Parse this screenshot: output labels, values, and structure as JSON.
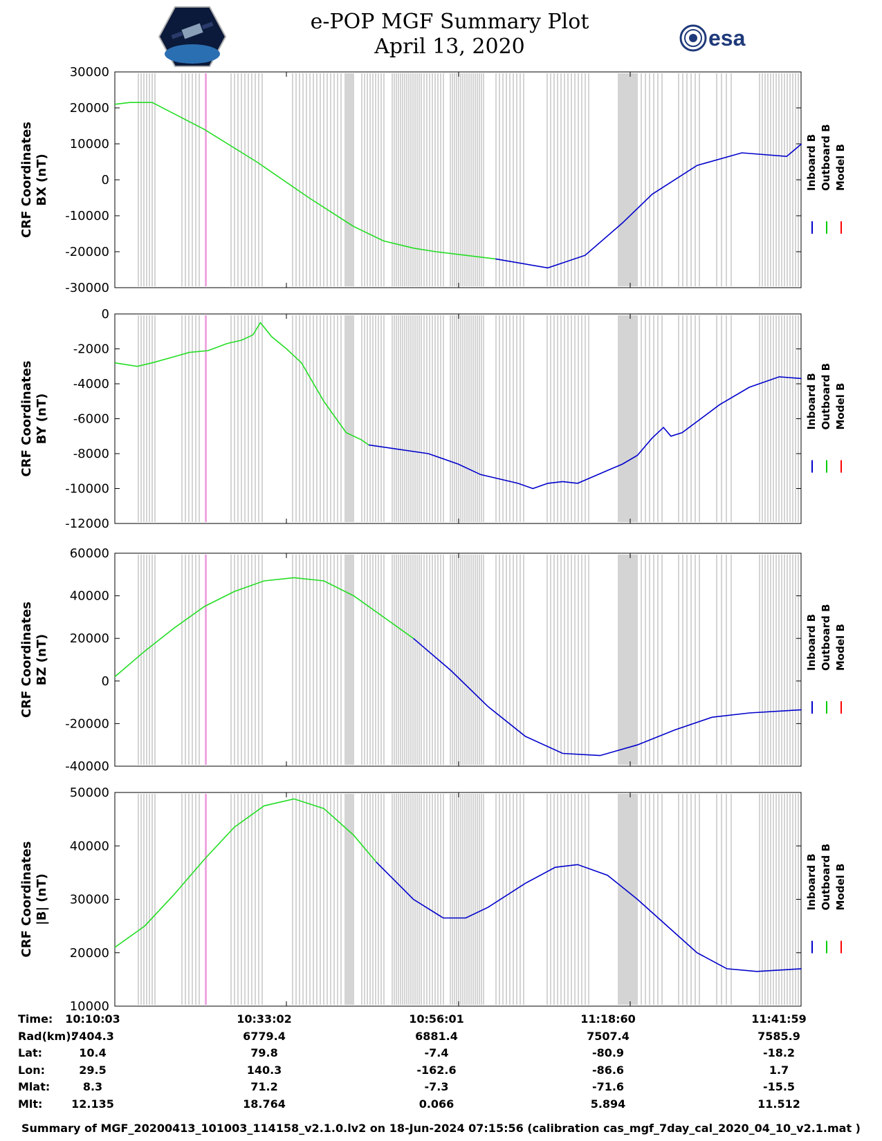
{
  "header": {
    "title_line1": "e-POP MGF Summary Plot",
    "title_line2": "April 13, 2020",
    "logo_left_name": "cassiope-mission-logo",
    "logo_right_text": "esa"
  },
  "legend": {
    "entries": [
      "Inboard B",
      "Outboard B",
      "Model B"
    ],
    "colors": [
      "#0000cc",
      "#00cc00",
      "#ff0000"
    ]
  },
  "colors": {
    "inboard": "#0000cc",
    "outboard": "#22dd22",
    "model": "#ff0000",
    "gap_bands": "#d4d4d4",
    "marker": "#f0a8e0"
  },
  "time_axis": {
    "ticks": [
      "10:10:03",
      "10:33:02",
      "10:56:01",
      "11:18:60",
      "11:41:59"
    ],
    "start_minutes": 0,
    "end_minutes": 91.93
  },
  "chart_data": [
    {
      "type": "line",
      "name": "bx",
      "ylabel_line1": "CRF Coordinates",
      "ylabel_line2": "BX (nT)",
      "ylim": [
        -30000,
        30000
      ],
      "yticks": [
        30000,
        20000,
        10000,
        0,
        -10000,
        -20000,
        -30000
      ],
      "ytick_labels": [
        "30000",
        "20000",
        "10000",
        "0",
        "-10000",
        "-20000",
        "-30000"
      ],
      "series": [
        {
          "name": "Outboard B",
          "t": [
            0,
            2,
            5,
            12,
            19,
            26,
            32,
            36,
            40,
            43,
            47,
            51
          ],
          "values": [
            21000,
            21500,
            21500,
            14000,
            5000,
            -5000,
            -13000,
            -17000,
            -19000,
            -20000,
            -21000,
            -22000
          ]
        },
        {
          "name": "Inboard B",
          "t": [
            51,
            58,
            63,
            68,
            72,
            78,
            84,
            90,
            92
          ],
          "values": [
            -22000,
            -24500,
            -21000,
            -12000,
            -4000,
            4000,
            7500,
            6500,
            10000
          ]
        }
      ]
    },
    {
      "type": "line",
      "name": "by",
      "ylabel_line1": "CRF Coordinates",
      "ylabel_line2": "BY (nT)",
      "ylim": [
        -12000,
        0
      ],
      "yticks": [
        0,
        -2000,
        -4000,
        -6000,
        -8000,
        -10000,
        -12000
      ],
      "ytick_labels": [
        "0",
        "-2000",
        "-4000",
        "-6000",
        "-8000",
        "-10000",
        "-12000"
      ],
      "series": [
        {
          "name": "Outboard B",
          "t": [
            0,
            3,
            5,
            10,
            12.5,
            15,
            17,
            18.5,
            19.5,
            21,
            23,
            25,
            28,
            31,
            33,
            34
          ],
          "values": [
            -2800,
            -3000,
            -2800,
            -2200,
            -2100,
            -1700,
            -1500,
            -1200,
            -500,
            -1300,
            -2000,
            -2800,
            -5000,
            -6800,
            -7200,
            -7500
          ]
        },
        {
          "name": "Inboard B",
          "t": [
            34,
            42,
            46,
            49,
            54,
            56,
            58,
            60,
            62,
            68,
            70,
            72,
            73.5,
            74.5,
            76,
            81,
            85,
            89,
            92
          ],
          "values": [
            -7500,
            -8000,
            -8600,
            -9200,
            -9700,
            -10000,
            -9700,
            -9600,
            -9700,
            -8600,
            -8100,
            -7100,
            -6500,
            -7000,
            -6800,
            -5200,
            -4200,
            -3600,
            -3700
          ]
        }
      ]
    },
    {
      "type": "line",
      "name": "bz",
      "ylabel_line1": "CRF Coordinates",
      "ylabel_line2": "BZ (nT)",
      "ylim": [
        -40000,
        60000
      ],
      "yticks": [
        60000,
        40000,
        20000,
        0,
        -20000,
        -40000
      ],
      "ytick_labels": [
        "60000",
        "40000",
        "20000",
        "0",
        "-20000",
        "-40000"
      ],
      "series": [
        {
          "name": "Outboard B",
          "t": [
            0,
            4,
            8,
            12,
            16,
            20,
            24,
            28,
            32,
            36,
            40
          ],
          "values": [
            2000,
            14000,
            25000,
            35000,
            42000,
            47000,
            48500,
            47000,
            40000,
            30000,
            20000
          ]
        },
        {
          "name": "Inboard B",
          "t": [
            40,
            45,
            50,
            55,
            60,
            65,
            70,
            75,
            80,
            85,
            92
          ],
          "values": [
            20000,
            5000,
            -12000,
            -26000,
            -34000,
            -35000,
            -30000,
            -23000,
            -17000,
            -15000,
            -13500
          ]
        }
      ]
    },
    {
      "type": "line",
      "name": "bmag",
      "ylabel_line1": "CRF Coordinates",
      "ylabel_line2": "|B| (nT)",
      "ylim": [
        10000,
        50000
      ],
      "yticks": [
        50000,
        40000,
        30000,
        20000,
        10000
      ],
      "ytick_labels": [
        "50000",
        "40000",
        "30000",
        "20000",
        "10000"
      ],
      "series": [
        {
          "name": "Outboard B",
          "t": [
            0,
            4,
            8,
            12,
            16,
            20,
            24,
            28,
            32,
            35
          ],
          "values": [
            21000,
            25000,
            31000,
            37500,
            43500,
            47500,
            48800,
            47000,
            42000,
            37000
          ]
        },
        {
          "name": "Inboard B",
          "t": [
            35,
            40,
            44,
            47,
            50,
            55,
            59,
            62,
            66,
            70,
            74,
            78,
            82,
            86,
            92
          ],
          "values": [
            37000,
            30000,
            26500,
            26500,
            28500,
            33000,
            36000,
            36500,
            34500,
            30000,
            25000,
            20000,
            17000,
            16500,
            17000
          ]
        }
      ]
    }
  ],
  "ephemeris": {
    "rows": [
      {
        "label": "Time:",
        "values": [
          "10:10:03",
          "10:33:02",
          "10:56:01",
          "11:18:60",
          "11:41:59"
        ]
      },
      {
        "label": "Rad(km):",
        "values": [
          "7404.3",
          "6779.4",
          "6881.4",
          "7507.4",
          "7585.9"
        ]
      },
      {
        "label": "Lat:",
        "values": [
          "10.4",
          "79.8",
          "-7.4",
          "-80.9",
          "-18.2"
        ]
      },
      {
        "label": "Lon:",
        "values": [
          "29.5",
          "140.3",
          "-162.6",
          "-86.6",
          "1.7"
        ]
      },
      {
        "label": "Mlat:",
        "values": [
          "8.3",
          "71.2",
          "-7.3",
          "-71.6",
          "-15.5"
        ]
      },
      {
        "label": "Mlt:",
        "values": [
          "12.135",
          "18.764",
          "0.066",
          "5.894",
          "11.512"
        ]
      }
    ]
  },
  "footer": "Summary of MGF_20200413_101003_114158_v2.1.0.lv2 on 18-Jun-2024 07:15:56 (calibration cas_mgf_7day_cal_2020_04_10_v2.1.mat )"
}
